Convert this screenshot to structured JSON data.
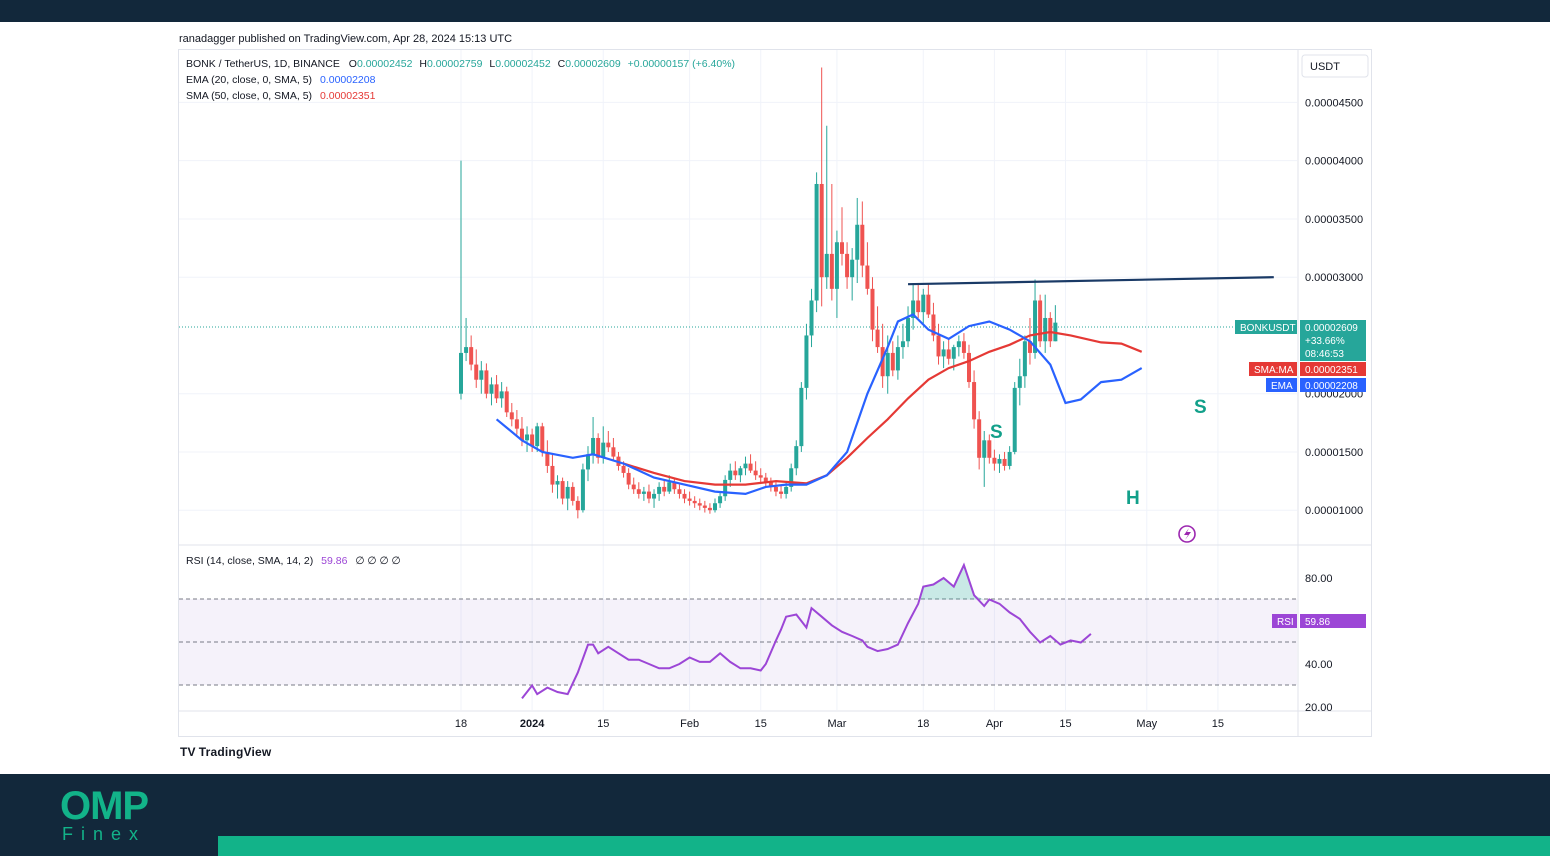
{
  "header": {
    "published": "ranadagger published on TradingView.com, Apr 28, 2024 15:13 UTC"
  },
  "legend": {
    "symbol": "BONK / TetherUS, 1D, BINANCE",
    "o_label": "O",
    "o_value": "0.00002452",
    "h_label": "H",
    "h_value": "0.00002759",
    "l_label": "L",
    "l_value": "0.00002452",
    "c_label": "C",
    "c_value": "0.00002609",
    "change": "+0.00000157 (+6.40%)",
    "ema_label": "EMA (20, close, 0, SMA, 5)",
    "ema_value": "0.00002208",
    "sma_label": "SMA (50, close, 0, SMA, 5)",
    "sma_value": "0.00002351",
    "rsi_label": "RSI (14, close, SMA, 14, 2)",
    "rsi_value": "59.86",
    "rsi_extras": "∅ ∅ ∅ ∅"
  },
  "currency_button": "USDT",
  "colors": {
    "up": "#26a69a",
    "down": "#ef5350",
    "ema": "#2962ff",
    "sma": "#e53935",
    "rsi": "#9c46d6",
    "neckline": "#1a3a66",
    "accent": "#12b389"
  },
  "badges": {
    "price_name": "BONKUSDT",
    "price_value": "0.00002609",
    "price_change": "+33.66%",
    "countdown": "08:46:53",
    "sma_name": "SMA:MA",
    "sma_value": "0.00002351",
    "ema_name": "EMA",
    "ema_value": "0.00002208",
    "rsi_name": "RSI",
    "rsi_value": "59.86"
  },
  "annotations": {
    "s_left": "S",
    "head": "H",
    "s_right": "S"
  },
  "brand": {
    "tradingview": "TradingView",
    "logo_main": "OMP",
    "logo_sub": "Finex"
  },
  "chart_data": {
    "type": "candlestick",
    "y_axis_labels": [
      "0.00004500",
      "0.00004000",
      "0.00003500",
      "0.00003000",
      "0.00002000",
      "0.00001500",
      "0.00001000"
    ],
    "y_range": [
      7.1e-06,
      4.95e-05
    ],
    "x_axis_labels": [
      "18",
      "2024",
      "15",
      "Feb",
      "15",
      "Mar",
      "18",
      "Apr",
      "15",
      "May",
      "15"
    ],
    "x_axis_days": [
      0,
      14,
      28,
      45,
      59,
      74,
      91,
      105,
      119,
      135,
      149
    ],
    "candles_ohlc": [
      [
        2e-05,
        4e-05,
        1.95e-05,
        2.35e-05
      ],
      [
        2.35e-05,
        2.65e-05,
        2.28e-05,
        2.4e-05
      ],
      [
        2.4e-05,
        2.5e-05,
        2.2e-05,
        2.25e-05
      ],
      [
        2.25e-05,
        2.38e-05,
        2.05e-05,
        2.12e-05
      ],
      [
        2.12e-05,
        2.28e-05,
        2e-05,
        2.2e-05
      ],
      [
        2.2e-05,
        2.26e-05,
        1.96e-05,
        2e-05
      ],
      [
        2e-05,
        2.14e-05,
        1.9e-05,
        2.08e-05
      ],
      [
        2.08e-05,
        2.16e-05,
        1.92e-05,
        1.96e-05
      ],
      [
        1.96e-05,
        2.1e-05,
        1.88e-05,
        2.02e-05
      ],
      [
        2.02e-05,
        2.06e-05,
        1.8e-05,
        1.84e-05
      ],
      [
        1.84e-05,
        1.92e-05,
        1.72e-05,
        1.78e-05
      ],
      [
        1.78e-05,
        1.86e-05,
        1.65e-05,
        1.7e-05
      ],
      [
        1.7e-05,
        1.8e-05,
        1.55e-05,
        1.6e-05
      ],
      [
        1.6e-05,
        1.72e-05,
        1.5e-05,
        1.65e-05
      ],
      [
        1.65e-05,
        1.7e-05,
        1.5e-05,
        1.55e-05
      ],
      [
        1.55e-05,
        1.75e-05,
        1.5e-05,
        1.72e-05
      ],
      [
        1.72e-05,
        1.75e-05,
        1.46e-05,
        1.5e-05
      ],
      [
        1.5e-05,
        1.6e-05,
        1.32e-05,
        1.38e-05
      ],
      [
        1.38e-05,
        1.48e-05,
        1.15e-05,
        1.22e-05
      ],
      [
        1.22e-05,
        1.3e-05,
        1.1e-05,
        1.25e-05
      ],
      [
        1.25e-05,
        1.28e-05,
        1.05e-05,
        1.1e-05
      ],
      [
        1.1e-05,
        1.25e-05,
        1e-05,
        1.2e-05
      ],
      [
        1.2e-05,
        1.24e-05,
        1.04e-05,
        1.08e-05
      ],
      [
        1.08e-05,
        1.12e-05,
        9.3e-06,
        1e-05
      ],
      [
        1e-05,
        1.4e-05,
        9.8e-06,
        1.35e-05
      ],
      [
        1.35e-05,
        1.55e-05,
        1.25e-05,
        1.48e-05
      ],
      [
        1.48e-05,
        1.8e-05,
        1.4e-05,
        1.62e-05
      ],
      [
        1.62e-05,
        1.66e-05,
        1.4e-05,
        1.45e-05
      ],
      [
        1.45e-05,
        1.72e-05,
        1.4e-05,
        1.58e-05
      ],
      [
        1.58e-05,
        1.68e-05,
        1.5e-05,
        1.54e-05
      ],
      [
        1.54e-05,
        1.62e-05,
        1.42e-05,
        1.46e-05
      ],
      [
        1.46e-05,
        1.5e-05,
        1.34e-05,
        1.38e-05
      ],
      [
        1.38e-05,
        1.42e-05,
        1.28e-05,
        1.32e-05
      ],
      [
        1.32e-05,
        1.36e-05,
        1.18e-05,
        1.22e-05
      ],
      [
        1.22e-05,
        1.28e-05,
        1.14e-05,
        1.18e-05
      ],
      [
        1.18e-05,
        1.24e-05,
        1.1e-05,
        1.14e-05
      ],
      [
        1.14e-05,
        1.2e-05,
        1.08e-05,
        1.16e-05
      ],
      [
        1.16e-05,
        1.22e-05,
        1.06e-05,
        1.1e-05
      ],
      [
        1.1e-05,
        1.18e-05,
        1.02e-05,
        1.14e-05
      ],
      [
        1.14e-05,
        1.24e-05,
        1.08e-05,
        1.2e-05
      ],
      [
        1.2e-05,
        1.26e-05,
        1.12e-05,
        1.16e-05
      ],
      [
        1.16e-05,
        1.3e-05,
        1.14e-05,
        1.24e-05
      ],
      [
        1.24e-05,
        1.28e-05,
        1.14e-05,
        1.18e-05
      ],
      [
        1.18e-05,
        1.22e-05,
        1.1e-05,
        1.14e-05
      ],
      [
        1.14e-05,
        1.18e-05,
        1.06e-05,
        1.1e-05
      ],
      [
        1.1e-05,
        1.16e-05,
        1.04e-05,
        1.08e-05
      ],
      [
        1.08e-05,
        1.12e-05,
        1.02e-05,
        1.06e-05
      ],
      [
        1.06e-05,
        1.1e-05,
        1e-05,
        1.04e-05
      ],
      [
        1.04e-05,
        1.08e-05,
        9.8e-06,
        1.02e-05
      ],
      [
        1.02e-05,
        1.06e-05,
        9.7e-06,
        1e-05
      ],
      [
        1e-05,
        1.1e-05,
        9.8e-06,
        1.06e-05
      ],
      [
        1.06e-05,
        1.16e-05,
        1.02e-05,
        1.12e-05
      ],
      [
        1.12e-05,
        1.3e-05,
        1.08e-05,
        1.26e-05
      ],
      [
        1.26e-05,
        1.4e-05,
        1.2e-05,
        1.34e-05
      ],
      [
        1.34e-05,
        1.42e-05,
        1.26e-05,
        1.3e-05
      ],
      [
        1.3e-05,
        1.38e-05,
        1.24e-05,
        1.36e-05
      ],
      [
        1.36e-05,
        1.46e-05,
        1.3e-05,
        1.4e-05
      ],
      [
        1.4e-05,
        1.48e-05,
        1.32e-05,
        1.34e-05
      ],
      [
        1.34e-05,
        1.42e-05,
        1.26e-05,
        1.3e-05
      ],
      [
        1.3e-05,
        1.36e-05,
        1.24e-05,
        1.28e-05
      ],
      [
        1.28e-05,
        1.32e-05,
        1.2e-05,
        1.24e-05
      ],
      [
        1.24e-05,
        1.28e-05,
        1.16e-05,
        1.2e-05
      ],
      [
        1.2e-05,
        1.24e-05,
        1.12e-05,
        1.16e-05
      ],
      [
        1.16e-05,
        1.22e-05,
        1.1e-05,
        1.14e-05
      ],
      [
        1.14e-05,
        1.24e-05,
        1.1e-05,
        1.2e-05
      ],
      [
        1.2e-05,
        1.4e-05,
        1.16e-05,
        1.36e-05
      ],
      [
        1.36e-05,
        1.6e-05,
        1.3e-05,
        1.55e-05
      ],
      [
        1.55e-05,
        2.1e-05,
        1.5e-05,
        2.05e-05
      ],
      [
        2.05e-05,
        2.6e-05,
        1.95e-05,
        2.5e-05
      ],
      [
        2.5e-05,
        2.9e-05,
        2.4e-05,
        2.8e-05
      ],
      [
        2.8e-05,
        3.9e-05,
        2.7e-05,
        3.8e-05
      ],
      [
        3.8e-05,
        4.8e-05,
        2.75e-05,
        3e-05
      ],
      [
        3e-05,
        4.3e-05,
        2.9e-05,
        3.2e-05
      ],
      [
        3.2e-05,
        3.8e-05,
        2.8e-05,
        2.9e-05
      ],
      [
        2.9e-05,
        3.4e-05,
        2.65e-05,
        3.3e-05
      ],
      [
        3.3e-05,
        3.6e-05,
        3.1e-05,
        3.2e-05
      ],
      [
        3.2e-05,
        3.3e-05,
        2.9e-05,
        3e-05
      ],
      [
        3e-05,
        3.25e-05,
        2.8e-05,
        3.15e-05
      ],
      [
        3.15e-05,
        3.68e-05,
        2.95e-05,
        3.45e-05
      ],
      [
        3.45e-05,
        3.65e-05,
        3e-05,
        3.1e-05
      ],
      [
        3.1e-05,
        3.3e-05,
        2.85e-05,
        2.9e-05
      ],
      [
        2.9e-05,
        3e-05,
        2.45e-05,
        2.55e-05
      ],
      [
        2.55e-05,
        2.75e-05,
        2.35e-05,
        2.4e-05
      ],
      [
        2.4e-05,
        2.6e-05,
        2.05e-05,
        2.15e-05
      ],
      [
        2.15e-05,
        2.5e-05,
        2e-05,
        2.35e-05
      ],
      [
        2.35e-05,
        2.45e-05,
        2.15e-05,
        2.2e-05
      ],
      [
        2.2e-05,
        2.5e-05,
        2.12e-05,
        2.4e-05
      ],
      [
        2.4e-05,
        2.6e-05,
        2.3e-05,
        2.45e-05
      ],
      [
        2.45e-05,
        2.75e-05,
        2.4e-05,
        2.65e-05
      ],
      [
        2.65e-05,
        2.95e-05,
        2.55e-05,
        2.8e-05
      ],
      [
        2.8e-05,
        2.95e-05,
        2.65e-05,
        2.7e-05
      ],
      [
        2.7e-05,
        2.9e-05,
        2.6e-05,
        2.85e-05
      ],
      [
        2.85e-05,
        2.95e-05,
        2.65e-05,
        2.68e-05
      ],
      [
        2.68e-05,
        2.78e-05,
        2.45e-05,
        2.5e-05
      ],
      [
        2.5e-05,
        2.6e-05,
        2.25e-05,
        2.32e-05
      ],
      [
        2.32e-05,
        2.45e-05,
        2.22e-05,
        2.38e-05
      ],
      [
        2.38e-05,
        2.48e-05,
        2.25e-05,
        2.3e-05
      ],
      [
        2.3e-05,
        2.42e-05,
        2.2e-05,
        2.4e-05
      ],
      [
        2.4e-05,
        2.5e-05,
        2.32e-05,
        2.45e-05
      ],
      [
        2.45e-05,
        2.52e-05,
        2.3e-05,
        2.35e-05
      ],
      [
        2.35e-05,
        2.42e-05,
        2.05e-05,
        2.1e-05
      ],
      [
        2.1e-05,
        2.2e-05,
        1.7e-05,
        1.78e-05
      ],
      [
        1.78e-05,
        1.85e-05,
        1.35e-05,
        1.45e-05
      ],
      [
        1.45e-05,
        1.68e-05,
        1.2e-05,
        1.6e-05
      ],
      [
        1.6e-05,
        1.65e-05,
        1.4e-05,
        1.45e-05
      ],
      [
        1.45e-05,
        1.52e-05,
        1.34e-05,
        1.4e-05
      ],
      [
        1.4e-05,
        1.48e-05,
        1.32e-05,
        1.44e-05
      ],
      [
        1.44e-05,
        1.5e-05,
        1.34e-05,
        1.38e-05
      ],
      [
        1.38e-05,
        1.55e-05,
        1.35e-05,
        1.5e-05
      ],
      [
        1.5e-05,
        2.1e-05,
        1.48e-05,
        2.05e-05
      ],
      [
        2.05e-05,
        2.3e-05,
        1.9e-05,
        2.15e-05
      ],
      [
        2.15e-05,
        2.5e-05,
        2.05e-05,
        2.45e-05
      ],
      [
        2.45e-05,
        2.65e-05,
        2.25e-05,
        2.35e-05
      ],
      [
        2.35e-05,
        2.98e-05,
        2.3e-05,
        2.8e-05
      ],
      [
        2.8e-05,
        2.85e-05,
        2.4e-05,
        2.45e-05
      ],
      [
        2.45e-05,
        2.85e-05,
        2.35e-05,
        2.65e-05
      ],
      [
        2.65e-05,
        2.7e-05,
        2.4e-05,
        2.45e-05
      ],
      [
        2.45e-05,
        2.76e-05,
        2.45e-05,
        2.61e-05
      ]
    ],
    "ema_20": [
      [
        7,
        1.78e-05
      ],
      [
        12,
        1.6e-05
      ],
      [
        16,
        1.5e-05
      ],
      [
        22,
        1.45e-05
      ],
      [
        26,
        1.48e-05
      ],
      [
        32,
        1.4e-05
      ],
      [
        38,
        1.28e-05
      ],
      [
        44,
        1.22e-05
      ],
      [
        50,
        1.16e-05
      ],
      [
        56,
        1.14e-05
      ],
      [
        60,
        1.2e-05
      ],
      [
        64,
        1.22e-05
      ],
      [
        68,
        1.22e-05
      ],
      [
        72,
        1.3e-05
      ],
      [
        76,
        1.5e-05
      ],
      [
        80,
        2e-05
      ],
      [
        84,
        2.4e-05
      ],
      [
        86,
        2.62e-05
      ],
      [
        89,
        2.68e-05
      ],
      [
        92,
        2.55e-05
      ],
      [
        96,
        2.47e-05
      ],
      [
        100,
        2.58e-05
      ],
      [
        104,
        2.62e-05
      ],
      [
        108,
        2.55e-05
      ],
      [
        112,
        2.45e-05
      ],
      [
        116,
        2.25e-05
      ],
      [
        119,
        1.92e-05
      ],
      [
        122,
        1.95e-05
      ],
      [
        126,
        2.1e-05
      ],
      [
        130,
        2.12e-05
      ],
      [
        134,
        2.22e-05
      ]
    ],
    "sma_50": [
      [
        32,
        1.4e-05
      ],
      [
        38,
        1.32e-05
      ],
      [
        44,
        1.25e-05
      ],
      [
        50,
        1.22e-05
      ],
      [
        56,
        1.22e-05
      ],
      [
        62,
        1.25e-05
      ],
      [
        68,
        1.23e-05
      ],
      [
        72,
        1.3e-05
      ],
      [
        76,
        1.45e-05
      ],
      [
        80,
        1.62e-05
      ],
      [
        84,
        1.78e-05
      ],
      [
        88,
        1.96e-05
      ],
      [
        92,
        2.12e-05
      ],
      [
        96,
        2.22e-05
      ],
      [
        100,
        2.28e-05
      ],
      [
        104,
        2.36e-05
      ],
      [
        108,
        2.42e-05
      ],
      [
        112,
        2.5e-05
      ],
      [
        116,
        2.53e-05
      ],
      [
        120,
        2.5e-05
      ],
      [
        126,
        2.44e-05
      ],
      [
        130,
        2.43e-05
      ],
      [
        134,
        2.36e-05
      ]
    ],
    "neckline": [
      [
        88,
        2.94e-05
      ],
      [
        160,
        3e-05
      ]
    ],
    "rsi": [
      [
        12,
        24
      ],
      [
        14,
        30
      ],
      [
        15,
        26
      ],
      [
        17,
        29
      ],
      [
        19,
        27
      ],
      [
        21,
        26
      ],
      [
        23,
        36
      ],
      [
        25,
        49
      ],
      [
        26,
        49
      ],
      [
        27,
        45
      ],
      [
        29,
        48
      ],
      [
        31,
        45
      ],
      [
        33,
        42
      ],
      [
        35,
        42
      ],
      [
        37,
        40
      ],
      [
        39,
        38
      ],
      [
        41,
        38
      ],
      [
        43,
        40
      ],
      [
        45,
        43
      ],
      [
        47,
        41
      ],
      [
        49,
        41
      ],
      [
        51,
        45
      ],
      [
        53,
        41
      ],
      [
        55,
        38
      ],
      [
        57,
        38
      ],
      [
        59,
        37
      ],
      [
        60,
        40
      ],
      [
        62,
        51
      ],
      [
        63,
        56
      ],
      [
        64,
        62
      ],
      [
        66,
        63
      ],
      [
        68,
        57
      ],
      [
        69,
        66
      ],
      [
        71,
        62
      ],
      [
        73,
        58
      ],
      [
        75,
        55
      ],
      [
        77,
        53
      ],
      [
        79,
        51
      ],
      [
        80,
        48
      ],
      [
        82,
        46
      ],
      [
        84,
        47
      ],
      [
        86,
        49
      ],
      [
        88,
        59
      ],
      [
        90,
        68
      ],
      [
        91,
        76
      ],
      [
        93,
        77
      ],
      [
        95,
        80
      ],
      [
        97,
        76
      ],
      [
        99,
        86
      ],
      [
        101,
        72
      ],
      [
        103,
        67
      ],
      [
        104,
        70
      ],
      [
        106,
        68
      ],
      [
        108,
        64
      ],
      [
        110,
        61
      ],
      [
        112,
        55
      ],
      [
        114,
        50
      ],
      [
        116,
        53
      ],
      [
        118,
        49
      ],
      [
        120,
        51
      ],
      [
        122,
        50
      ],
      [
        124,
        54
      ]
    ],
    "rsi_levels": [
      70,
      50,
      30
    ],
    "rsi_axis_labels": [
      "80.00",
      "40.00",
      "20.00"
    ],
    "legend_placement": "top-left",
    "grid": true
  }
}
